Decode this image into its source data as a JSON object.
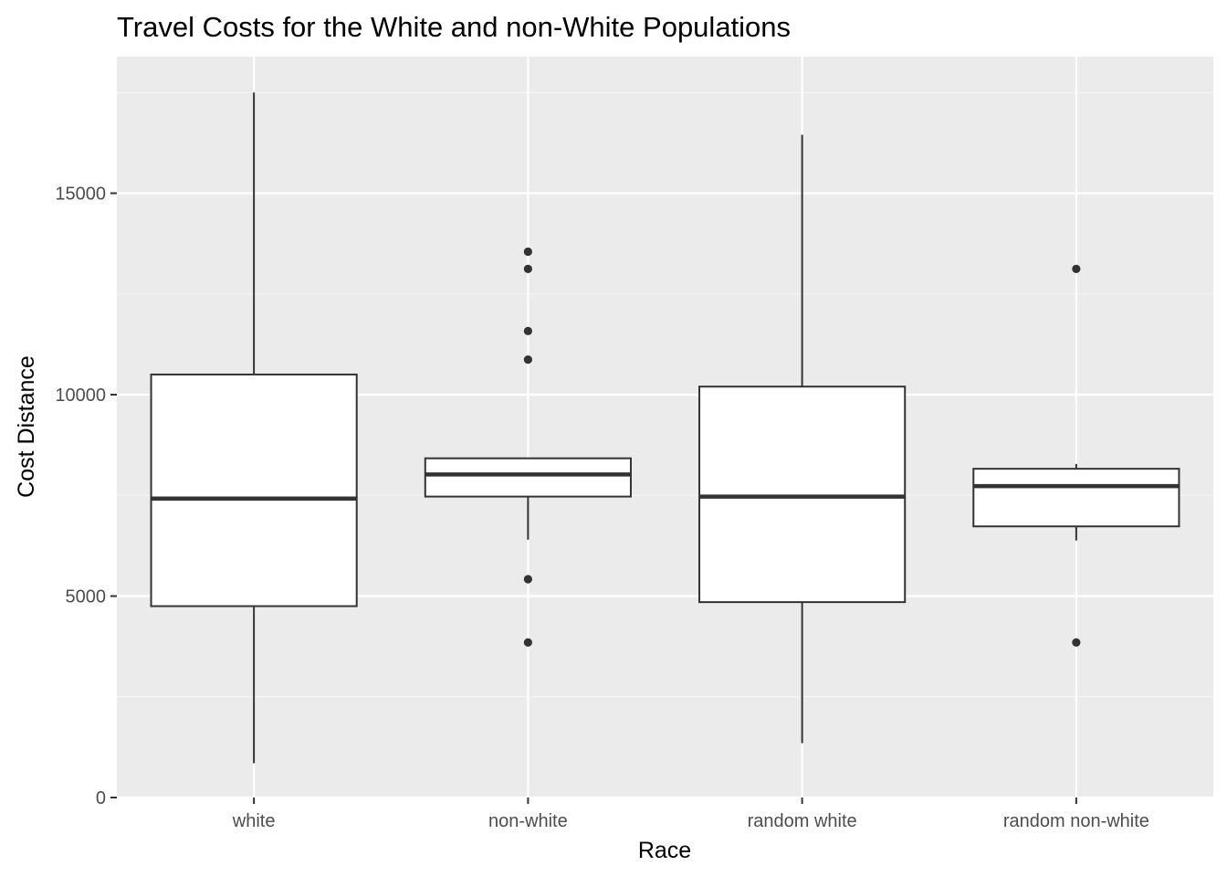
{
  "chart_data": {
    "type": "boxplot",
    "title": "Travel Costs for the White and non-White Populations",
    "xlabel": "Race",
    "ylabel": "Cost Distance",
    "ylim": [
      0,
      18000
    ],
    "y_ticks": [
      0,
      5000,
      10000,
      15000
    ],
    "y_tick_labels": [
      "0",
      "5000",
      "10000",
      "15000"
    ],
    "grid": true,
    "colors": {
      "panel_background": "#ebebeb",
      "grid_major": "#ffffff",
      "grid_minor": "#f5f5f5",
      "box_fill": "#ffffff",
      "box_line": "#333333",
      "tick_label": "#4d4d4d"
    },
    "categories": [
      "white",
      "non-white",
      "random white",
      "random non-white"
    ],
    "boxes": [
      {
        "category": "white",
        "whisker_low": 850,
        "q1": 4750,
        "median": 7420,
        "q3": 10500,
        "whisker_high": 17500,
        "outliers": []
      },
      {
        "category": "non-white",
        "whisker_low": 6400,
        "q1": 7470,
        "median": 8020,
        "q3": 8420,
        "whisker_high": 8420,
        "outliers": [
          13550,
          13120,
          11580,
          10870,
          5420,
          3850
        ]
      },
      {
        "category": "random white",
        "whisker_low": 1350,
        "q1": 4850,
        "median": 7470,
        "q3": 10200,
        "whisker_high": 16450,
        "outliers": []
      },
      {
        "category": "random non-white",
        "whisker_low": 6380,
        "q1": 6730,
        "median": 7730,
        "q3": 8160,
        "whisker_high": 8280,
        "outliers": [
          13120,
          3850
        ]
      }
    ]
  }
}
